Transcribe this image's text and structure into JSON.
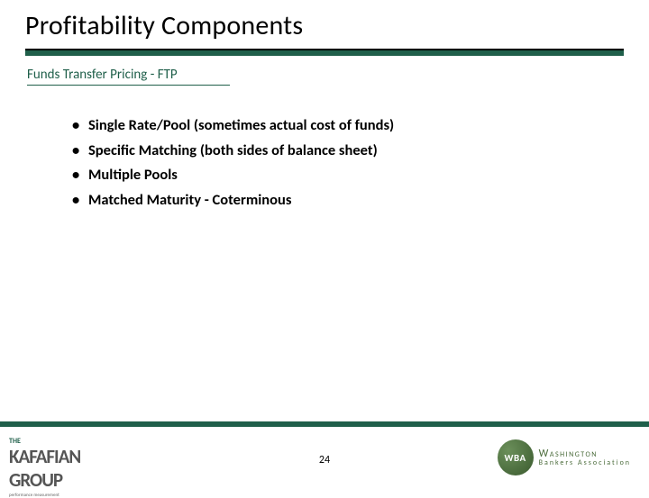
{
  "title": "Profitability Components",
  "subtitle": "Funds Transfer Pricing - FTP",
  "bullets": [
    "Single Rate/Pool (sometimes actual cost of funds)",
    "Specific Matching (both sides of balance sheet)",
    "Multiple Pools",
    "Matched Maturity - Coterminous"
  ],
  "page_number": "24",
  "colors": {
    "accent": "#1f5f4a",
    "wba_green": "#4a6b3a",
    "text": "#000000",
    "logo_gray": "#555555"
  },
  "typography": {
    "title_size": 30,
    "subtitle_size": 15,
    "bullet_size": 16.5,
    "bullet_weight": 700
  },
  "logo_left": {
    "top": "THE",
    "line1": "KAFAFIAN",
    "line2": "GROUP",
    "tagline": "performance measurement"
  },
  "logo_right": {
    "badge": "WBA",
    "line1": "Washington",
    "line2": "Bankers Association"
  }
}
